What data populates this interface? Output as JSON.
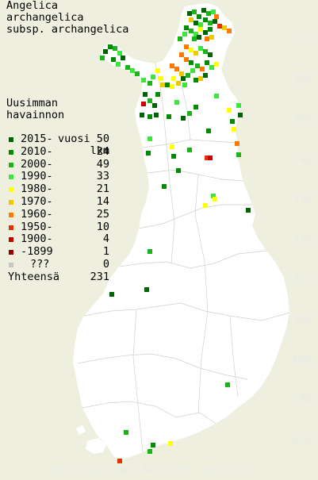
{
  "title_lines": [
    "Angelica",
    "archangelica",
    "subsp. archangelica"
  ],
  "legend": {
    "heading_lines": [
      "Uusimman",
      "havainnon",
      "vuosi"
    ],
    "count_heading": "lkm",
    "rows": [
      {
        "label": "2015-",
        "count": "50",
        "color": "#006400"
      },
      {
        "label": "2010-",
        "count": "24",
        "color": "#008c00"
      },
      {
        "label": "2000-",
        "count": "49",
        "color": "#18b418"
      },
      {
        "label": "1990-",
        "count": "33",
        "color": "#3ce63c"
      },
      {
        "label": "1980-",
        "count": "21",
        "color": "#ffff00"
      },
      {
        "label": "1970-",
        "count": "14",
        "color": "#f0c800"
      },
      {
        "label": "1960-",
        "count": "25",
        "color": "#ff7800"
      },
      {
        "label": "1950-",
        "count": "10",
        "color": "#e63200"
      },
      {
        "label": "1900-",
        "count": "4",
        "color": "#c80000"
      },
      {
        "label": "-1899",
        "count": "1",
        "color": "#960000"
      },
      {
        "label": "???",
        "count": "0",
        "color": "#c8c8c8"
      }
    ],
    "total_label": "Yhteensä",
    "total_count": "231"
  },
  "axes": {
    "x_ticks": [
      "310",
      "320",
      "330",
      "340",
      "350",
      "360",
      "370"
    ],
    "y_ticks": [
      "770",
      "760",
      "750",
      "740",
      "730",
      "720",
      "710",
      "700",
      "690",
      "680",
      "670"
    ]
  }
}
